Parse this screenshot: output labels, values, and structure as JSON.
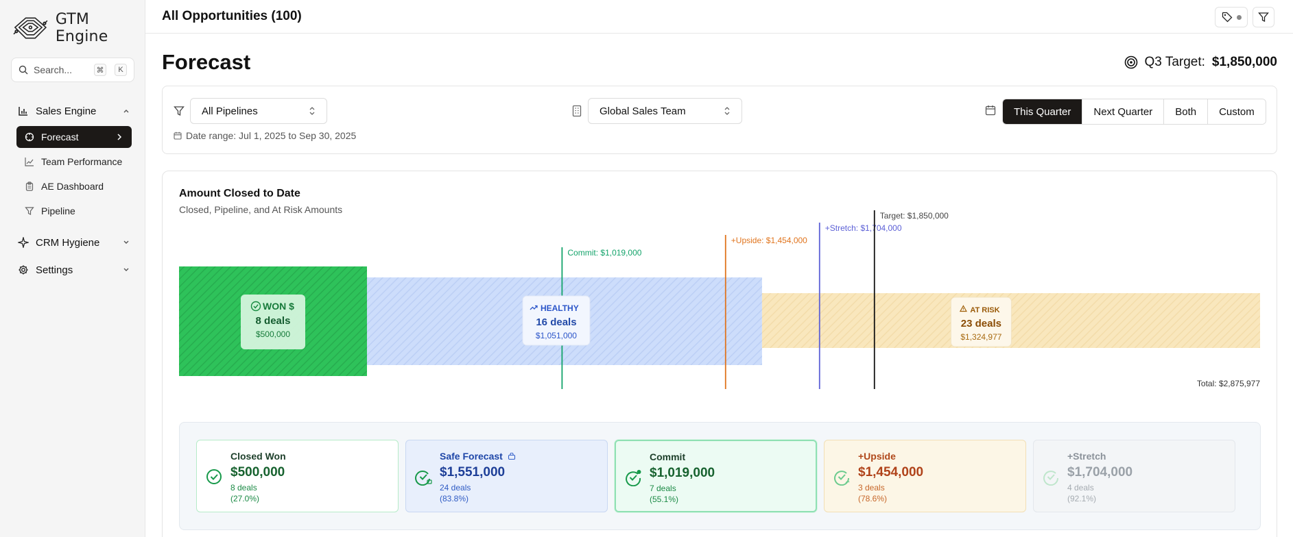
{
  "app": {
    "name": "GTM Engine"
  },
  "search": {
    "placeholder": "Search...",
    "kbd1": "⌘",
    "kbd2": "K"
  },
  "sidebar": {
    "groups": [
      {
        "label": "Sales Engine"
      },
      {
        "label": "CRM Hygiene"
      },
      {
        "label": "Settings"
      }
    ],
    "items": [
      {
        "label": "Forecast"
      },
      {
        "label": "Team Performance"
      },
      {
        "label": "AE Dashboard"
      },
      {
        "label": "Pipeline"
      }
    ]
  },
  "header": {
    "title": "All Opportunities (100)"
  },
  "page": {
    "title": "Forecast",
    "target_label": "Q3 Target:",
    "target_value": "$1,850,000"
  },
  "filters": {
    "pipeline": "All Pipelines",
    "team": "Global Sales Team",
    "periods": [
      "This Quarter",
      "Next Quarter",
      "Both",
      "Custom"
    ],
    "active_period": "This Quarter",
    "date_range": "Date range: Jul 1, 2025 to Sep 30, 2025"
  },
  "chart": {
    "title": "Amount Closed to Date",
    "subtitle": "Closed, Pipeline, and At Risk Amounts",
    "total_label": "Total: $2,875,977",
    "segments": [
      {
        "name": "WON $",
        "deals": "8 deals",
        "amount": "$500,000",
        "value": 500000,
        "color": "#2ec25a"
      },
      {
        "name": "HEALTHY",
        "deals": "16 deals",
        "amount": "$1,051,000",
        "value": 1051000,
        "color": "#cdddfb"
      },
      {
        "name": "AT RISK",
        "deals": "23 deals",
        "amount": "$1,324,977",
        "value": 1324977,
        "color": "#f9e7bd"
      }
    ],
    "markers": [
      {
        "label": "Commit: $1,019,000",
        "value": 1019000,
        "color": "#13a36a"
      },
      {
        "label": "+Upside: $1,454,000",
        "value": 1454000,
        "color": "#e0741d"
      },
      {
        "label": "+Stretch: $1,704,000",
        "value": 1704000,
        "color": "#5b5fd6"
      },
      {
        "label": "Target: $1,850,000",
        "value": 1850000,
        "color": "#111111"
      }
    ]
  },
  "summary": [
    {
      "label": "Closed Won",
      "value": "$500,000",
      "deals": "8 deals",
      "pct": "(27.0%)"
    },
    {
      "label": "Safe Forecast",
      "value": "$1,551,000",
      "deals": "24 deals",
      "pct": "(83.8%)"
    },
    {
      "label": "Commit",
      "value": "$1,019,000",
      "deals": "7 deals",
      "pct": "(55.1%)"
    },
    {
      "label": "+Upside",
      "value": "$1,454,000",
      "deals": "3 deals",
      "pct": "(78.6%)"
    },
    {
      "label": "+Stretch",
      "value": "$1,704,000",
      "deals": "4 deals",
      "pct": "(92.1%)"
    }
  ]
}
